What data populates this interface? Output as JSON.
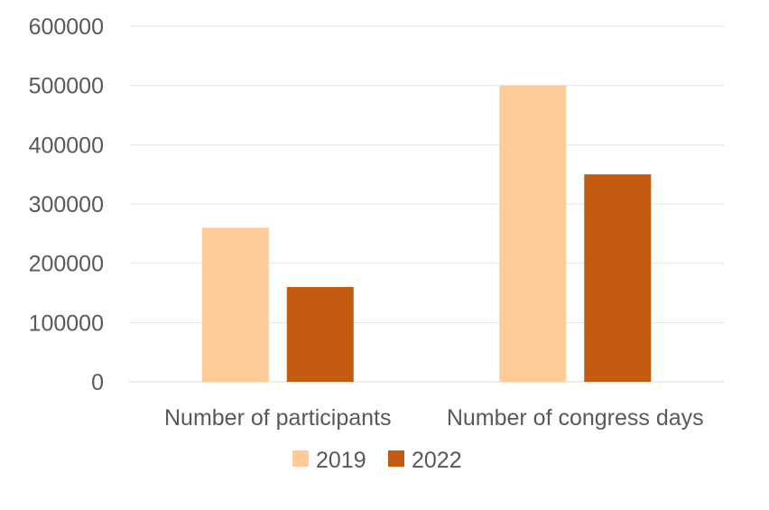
{
  "chart_data": {
    "type": "bar",
    "title": "",
    "xlabel": "",
    "ylabel": "",
    "categories": [
      "Number of participants",
      "Number of congress days"
    ],
    "series": [
      {
        "name": "2019",
        "values": [
          260000,
          500000
        ],
        "color": "#FFCC99"
      },
      {
        "name": "2022",
        "values": [
          160000,
          350000
        ],
        "color": "#C55A11"
      }
    ],
    "ylim": [
      0,
      600000
    ],
    "yticks": [
      "0",
      "100000",
      "200000",
      "300000",
      "400000",
      "500000",
      "600000"
    ],
    "grid": true,
    "legend_position": "bottom"
  }
}
